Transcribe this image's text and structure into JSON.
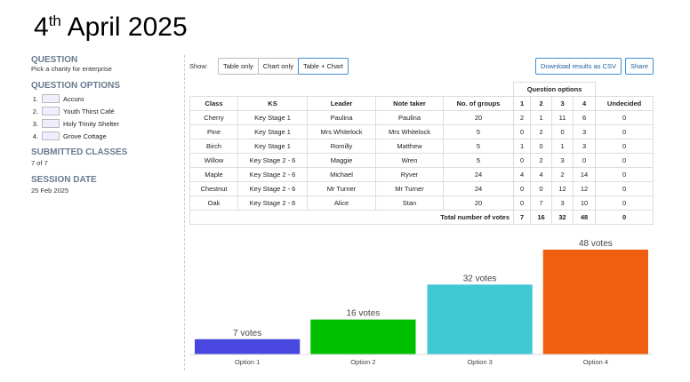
{
  "title": {
    "day": "4",
    "suffix": "th",
    "rest": "April 2025"
  },
  "sidebar": {
    "question_heading": "QUESTION",
    "question": "Pick a charity for enterprise",
    "options_heading": "QUESTION OPTIONS",
    "options": [
      {
        "num": "1.",
        "name": "Accuro"
      },
      {
        "num": "2.",
        "name": "Youth Thirst Café"
      },
      {
        "num": "3.",
        "name": "Holy Trinity Shelter"
      },
      {
        "num": "4.",
        "name": "Grove Cottage"
      }
    ],
    "classes_heading": "SUBMITTED CLASSES",
    "classes": "7 of 7",
    "date_heading": "SESSION DATE",
    "date": "25 Feb 2025"
  },
  "toolbar": {
    "show": "Show:",
    "buttons": [
      "Table only",
      "Chart only",
      "Table + Chart"
    ],
    "download": "Download results as CSV",
    "share": "Share"
  },
  "table": {
    "group_header": "Question options",
    "headers": [
      "Class",
      "KS",
      "Leader",
      "Note taker",
      "No. of groups",
      "1",
      "2",
      "3",
      "4",
      "Undecided"
    ],
    "rows": [
      [
        "Cherry",
        "Key Stage 1",
        "Paulina",
        "Paulina",
        "20",
        "2",
        "1",
        "11",
        "6",
        "0"
      ],
      [
        "Pine",
        "Key Stage 1",
        "Mrs Whitelock",
        "Mrs Whitelock",
        "5",
        "0",
        "2",
        "0",
        "3",
        "0"
      ],
      [
        "Birch",
        "Key Stage 1",
        "Romilly",
        "Matthew",
        "5",
        "1",
        "0",
        "1",
        "3",
        "0"
      ],
      [
        "Willow",
        "Key Stage 2 - 6",
        "Maggie",
        "Wren",
        "5",
        "0",
        "2",
        "3",
        "0",
        "0"
      ],
      [
        "Maple",
        "Key Stage 2 - 6",
        "Michael",
        "Ryver",
        "24",
        "4",
        "4",
        "2",
        "14",
        "0"
      ],
      [
        "Chestnut",
        "Key Stage 2 - 6",
        "Mr Turner",
        "Mr Turner",
        "24",
        "0",
        "0",
        "12",
        "12",
        "0"
      ],
      [
        "Oak",
        "Key Stage 2 - 6",
        "Alice",
        "Stan",
        "20",
        "0",
        "7",
        "3",
        "10",
        "0"
      ]
    ],
    "total": [
      "Total number of votes",
      "7",
      "16",
      "32",
      "48",
      "0"
    ]
  },
  "chart_data": {
    "type": "bar",
    "categories": [
      "Option 1",
      "Option 2",
      "Option 3",
      "Option 4"
    ],
    "values": [
      7,
      16,
      32,
      48
    ],
    "value_labels": [
      "7 votes",
      "16 votes",
      "32 votes",
      "48 votes"
    ],
    "colors": [
      "#4848e0",
      "#00c000",
      "#40c8d4",
      "#ee6010"
    ]
  }
}
